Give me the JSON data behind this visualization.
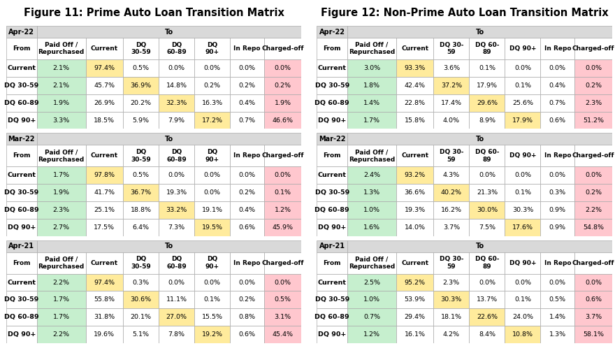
{
  "fig_title_left": "Figure 11: Prime Auto Loan Transition Matrix",
  "fig_title_right": "Figure 12: Non-Prime Auto Loan Transition Matrix",
  "col_headers_left": [
    "Paid Off /\nRepurchased",
    "Current",
    "DQ\n30-59",
    "DQ\n60-89",
    "DQ\n90+",
    "In Repo",
    "Charged-off"
  ],
  "col_headers_right": [
    "Paid Off /\nRepurchased",
    "Current",
    "DQ 30-\n59",
    "DQ 60-\n89",
    "DQ 90+",
    "In Repo",
    "Charged-off"
  ],
  "row_headers": [
    "Current",
    "DQ 30-59",
    "DQ 60-89",
    "DQ 90+"
  ],
  "periods": [
    "Apr-22",
    "Mar-22",
    "Apr-21"
  ],
  "prime_data": [
    [
      [
        "2.1%",
        "97.4%",
        "0.5%",
        "0.0%",
        "0.0%",
        "0.0%",
        "0.0%"
      ],
      [
        "2.1%",
        "45.7%",
        "36.9%",
        "14.8%",
        "0.2%",
        "0.2%",
        "0.2%"
      ],
      [
        "1.9%",
        "26.9%",
        "20.2%",
        "32.3%",
        "16.3%",
        "0.4%",
        "1.9%"
      ],
      [
        "3.3%",
        "18.5%",
        "5.9%",
        "7.9%",
        "17.2%",
        "0.7%",
        "46.6%"
      ]
    ],
    [
      [
        "1.7%",
        "97.8%",
        "0.5%",
        "0.0%",
        "0.0%",
        "0.0%",
        "0.0%"
      ],
      [
        "1.9%",
        "41.7%",
        "36.7%",
        "19.3%",
        "0.0%",
        "0.2%",
        "0.1%"
      ],
      [
        "2.3%",
        "25.1%",
        "18.8%",
        "33.2%",
        "19.1%",
        "0.4%",
        "1.2%"
      ],
      [
        "2.7%",
        "17.5%",
        "6.4%",
        "7.3%",
        "19.5%",
        "0.6%",
        "45.9%"
      ]
    ],
    [
      [
        "2.2%",
        "97.4%",
        "0.3%",
        "0.0%",
        "0.0%",
        "0.0%",
        "0.0%"
      ],
      [
        "1.7%",
        "55.8%",
        "30.6%",
        "11.1%",
        "0.1%",
        "0.2%",
        "0.5%"
      ],
      [
        "1.7%",
        "31.8%",
        "20.1%",
        "27.0%",
        "15.5%",
        "0.8%",
        "3.1%"
      ],
      [
        "2.2%",
        "19.6%",
        "5.1%",
        "7.8%",
        "19.2%",
        "0.6%",
        "45.4%"
      ]
    ]
  ],
  "nonprime_data": [
    [
      [
        "3.0%",
        "93.3%",
        "3.6%",
        "0.1%",
        "0.0%",
        "0.0%",
        "0.0%"
      ],
      [
        "1.8%",
        "42.4%",
        "37.2%",
        "17.9%",
        "0.1%",
        "0.4%",
        "0.2%"
      ],
      [
        "1.4%",
        "22.8%",
        "17.4%",
        "29.6%",
        "25.6%",
        "0.7%",
        "2.3%"
      ],
      [
        "1.7%",
        "15.8%",
        "4.0%",
        "8.9%",
        "17.9%",
        "0.6%",
        "51.2%"
      ]
    ],
    [
      [
        "2.4%",
        "93.2%",
        "4.3%",
        "0.0%",
        "0.0%",
        "0.0%",
        "0.0%"
      ],
      [
        "1.3%",
        "36.6%",
        "40.2%",
        "21.3%",
        "0.1%",
        "0.3%",
        "0.2%"
      ],
      [
        "1.0%",
        "19.3%",
        "16.2%",
        "30.0%",
        "30.3%",
        "0.9%",
        "2.2%"
      ],
      [
        "1.6%",
        "14.0%",
        "3.7%",
        "7.5%",
        "17.6%",
        "0.9%",
        "54.8%"
      ]
    ],
    [
      [
        "2.5%",
        "95.2%",
        "2.3%",
        "0.0%",
        "0.0%",
        "0.0%",
        "0.0%"
      ],
      [
        "1.0%",
        "53.9%",
        "30.3%",
        "13.7%",
        "0.1%",
        "0.5%",
        "0.6%"
      ],
      [
        "0.7%",
        "29.4%",
        "18.1%",
        "22.6%",
        "24.0%",
        "1.4%",
        "3.7%"
      ],
      [
        "1.2%",
        "16.1%",
        "4.2%",
        "8.4%",
        "10.8%",
        "1.3%",
        "58.1%"
      ]
    ]
  ],
  "color_green": "#c6efce",
  "color_yellow": "#ffeb9c",
  "color_pink": "#ffc7ce",
  "color_white": "#ffffff",
  "color_header_bg": "#d9d9d9",
  "color_border": "#aaaaaa",
  "background_color": "#ffffff",
  "title_fontsize": 10.5,
  "header_fontsize": 6.5,
  "data_fontsize": 6.8,
  "period_fontsize": 7.0
}
